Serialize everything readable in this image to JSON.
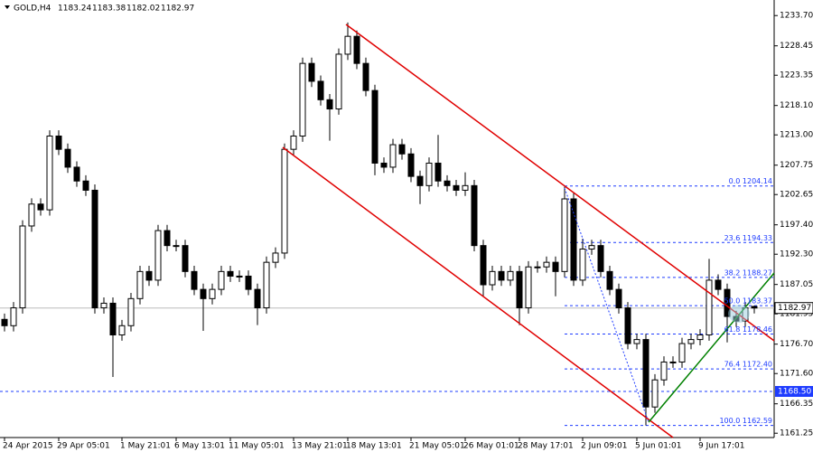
{
  "chart_data": {
    "type": "candlestick",
    "title": "GOLD,H4",
    "categories": [
      "24 Apr 2015",
      null,
      null,
      null,
      null,
      null,
      "29 Apr 05:01",
      null,
      null,
      null,
      null,
      null,
      null,
      "1 May 21:01",
      null,
      null,
      null,
      null,
      null,
      "6 May 13:01",
      null,
      null,
      null,
      null,
      null,
      "11 May 05:01",
      null,
      null,
      null,
      null,
      null,
      null,
      "13 May 21:01",
      null,
      null,
      null,
      null,
      null,
      "18 May 13:01",
      null,
      null,
      null,
      null,
      null,
      null,
      "21 May 05:01",
      null,
      null,
      null,
      null,
      null,
      "26 May 01:01",
      null,
      null,
      null,
      null,
      null,
      "28 May 17:01",
      null,
      null,
      null,
      null,
      null,
      null,
      "2 Jun 09:01",
      null,
      null,
      null,
      null,
      null,
      "5 Jun 01:01",
      null,
      null,
      null,
      null,
      null,
      null,
      "9 Jun 17:01",
      null,
      null,
      null,
      null,
      null,
      null
    ],
    "open": [
      1181,
      1179.9,
      1183,
      1197.2,
      1201,
      1200,
      1212.8,
      1210.5,
      1207.4,
      1205,
      1203.4,
      1183,
      1183.8,
      1178.3,
      1179.9,
      1184.6,
      1189.3,
      1187.8,
      1196.4,
      1193.8,
      1193.8,
      1189.3,
      1186.2,
      1184.6,
      1186.2,
      1189.3,
      1188.5,
      1188.5,
      1186.2,
      1183,
      1190.9,
      1192.5,
      1210.5,
      1212.8,
      1225.4,
      1222.3,
      1219.1,
      1217.5,
      1227,
      1230.1,
      1225.4,
      1220.7,
      1208.1,
      1207.4,
      1211.3,
      1209.7,
      1205.8,
      1204.2,
      1208.1,
      1205,
      1204.2,
      1203.4,
      1204.2,
      1193.8,
      1187,
      1189.3,
      1187.8,
      1189.3,
      1183,
      1190.1,
      1190.1,
      1190.9,
      1189.3,
      1201.9,
      1187.8,
      1193.2,
      1193.8,
      1189.3,
      1186.2,
      1183,
      1176.8,
      1177.5,
      1165.8,
      1170.5,
      1173.6,
      1173.6,
      1176.8,
      1177.5,
      1178.3,
      1187.8,
      1186.2,
      1181.5,
      1180.7,
      1183.24
    ],
    "high": [
      1182,
      1184,
      1198.2,
      1202,
      1202,
      1213.8,
      1213.8,
      1211.5,
      1208.4,
      1206,
      1204.4,
      1184.8,
      1184.8,
      1180.9,
      1185.6,
      1190.3,
      1190.3,
      1197.4,
      1197.4,
      1194.8,
      1194.8,
      1190.3,
      1187.2,
      1187.2,
      1190.3,
      1190.3,
      1189.5,
      1189.5,
      1187.2,
      1191.9,
      1193.5,
      1211.5,
      1213.8,
      1226.4,
      1226.4,
      1223.3,
      1220.1,
      1228,
      1232.5,
      1231.1,
      1226.4,
      1221.7,
      1209.1,
      1212.3,
      1212.3,
      1210.7,
      1206.8,
      1209.1,
      1213,
      1206,
      1205.2,
      1206.5,
      1205.2,
      1194.8,
      1190.3,
      1190.3,
      1190.3,
      1190.3,
      1191.1,
      1191.1,
      1191.9,
      1191.9,
      1204,
      1202.9,
      1195,
      1194.8,
      1194.8,
      1190.3,
      1187.2,
      1184,
      1178.5,
      1178.5,
      1171.5,
      1174.6,
      1174.6,
      1177.8,
      1178.5,
      1179.3,
      1191.5,
      1188.8,
      1187.2,
      1182.5,
      1184,
      1183.38
    ],
    "low": [
      1178.9,
      1178.9,
      1182,
      1196.2,
      1199,
      1199,
      1209.5,
      1206.4,
      1204,
      1202.4,
      1182,
      1182,
      1171,
      1177.3,
      1178.9,
      1183.6,
      1186.8,
      1186.8,
      1192.8,
      1192.8,
      1188.3,
      1185.2,
      1179,
      1183.6,
      1185.2,
      1187.5,
      1187.5,
      1185.2,
      1180,
      1182,
      1189.9,
      1191.5,
      1209.5,
      1211.8,
      1221.3,
      1218.1,
      1212,
      1216.5,
      1226,
      1224.4,
      1219.7,
      1206,
      1206.4,
      1206.4,
      1208.7,
      1204.8,
      1201,
      1203.2,
      1204,
      1203.2,
      1202.4,
      1202.4,
      1192.8,
      1185,
      1186,
      1186.8,
      1186.8,
      1180,
      1182,
      1189.1,
      1189.1,
      1185,
      1188.3,
      1186.8,
      1186.8,
      1192.2,
      1188.3,
      1185.2,
      1182,
      1175.8,
      1175.8,
      1162.59,
      1164.8,
      1169.5,
      1172.6,
      1172.6,
      1175.8,
      1176.5,
      1177.3,
      1185.2,
      1177,
      1179.7,
      1179.7,
      1182.02
    ],
    "close": [
      1179.9,
      1183,
      1197.2,
      1201,
      1200,
      1212.8,
      1210.5,
      1207.4,
      1205,
      1203.4,
      1183,
      1183.8,
      1178.3,
      1179.9,
      1184.6,
      1189.3,
      1187.8,
      1196.4,
      1193.8,
      1193.8,
      1189.3,
      1186.2,
      1184.6,
      1186.2,
      1189.3,
      1188.5,
      1188.5,
      1186.2,
      1183,
      1190.9,
      1192.5,
      1210.5,
      1212.8,
      1225.4,
      1222.3,
      1219.1,
      1217.5,
      1227,
      1230.1,
      1225.4,
      1220.7,
      1208.1,
      1207.4,
      1211.3,
      1209.7,
      1205.8,
      1204.2,
      1208.1,
      1205,
      1204.2,
      1203.4,
      1204.2,
      1193.8,
      1187,
      1189.3,
      1187.8,
      1189.3,
      1183,
      1190.1,
      1190.1,
      1190.9,
      1189.3,
      1201.9,
      1187.8,
      1193.2,
      1193.8,
      1189.3,
      1186.2,
      1183,
      1176.8,
      1177.5,
      1165.8,
      1170.5,
      1173.6,
      1173.6,
      1176.8,
      1177.5,
      1178.3,
      1187.8,
      1186.2,
      1181.5,
      1180.7,
      1183,
      1182.97
    ],
    "ylim": [
      1160.5,
      1236.4
    ],
    "yticks": [
      {
        "value": 1233.7,
        "label": "1233.70"
      },
      {
        "value": 1228.45,
        "label": "1228.45"
      },
      {
        "value": 1223.35,
        "label": "1223.35"
      },
      {
        "value": 1218.1,
        "label": "1218.10"
      },
      {
        "value": 1213.0,
        "label": "1213.00"
      },
      {
        "value": 1207.75,
        "label": "1207.75"
      },
      {
        "value": 1202.65,
        "label": "1202.65"
      },
      {
        "value": 1197.4,
        "label": "1197.40"
      },
      {
        "value": 1192.3,
        "label": "1192.30"
      },
      {
        "value": 1187.05,
        "label": "1187.05"
      },
      {
        "value": 1181.95,
        "label": "1181.95"
      },
      {
        "value": 1176.7,
        "label": "1176.70"
      },
      {
        "value": 1171.6,
        "label": "1171.60"
      },
      {
        "value": 1166.35,
        "label": "1166.35"
      },
      {
        "value": 1161.25,
        "label": "1161.25"
      }
    ],
    "fib_levels": [
      {
        "value": 1204.14,
        "label": "0.0 1204.14"
      },
      {
        "value": 1194.33,
        "label": "23.6 1194.33"
      },
      {
        "value": 1188.27,
        "label": "38.2 1188.27"
      },
      {
        "value": 1183.37,
        "label": "50.0 1183.37"
      },
      {
        "value": 1178.46,
        "label": "61.8 1178.46"
      },
      {
        "value": 1172.4,
        "label": "76.4 1172.40"
      },
      {
        "value": 1162.59,
        "label": "100.0 1162.59"
      }
    ],
    "level_line": {
      "value": 1168.5,
      "label": "1168.50"
    },
    "current_price": 1182.97
  }
}
